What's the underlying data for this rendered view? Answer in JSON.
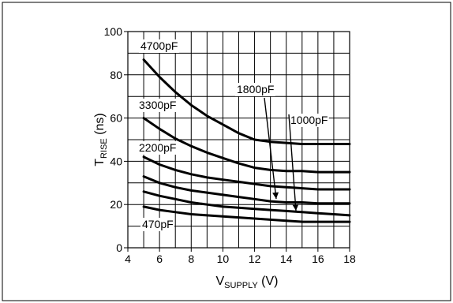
{
  "chart_data": {
    "type": "line",
    "title": "",
    "xlabel": {
      "main": "V",
      "sub": "SUPPLY",
      "unit": " (V)"
    },
    "ylabel": {
      "main": "T",
      "sub": "RISE",
      "unit": " (ns)"
    },
    "xlim": [
      4,
      18
    ],
    "ylim": [
      0,
      100
    ],
    "xticks": [
      4,
      6,
      8,
      10,
      12,
      14,
      16,
      18
    ],
    "yticks": [
      0,
      20,
      40,
      60,
      80,
      100
    ],
    "grid": true,
    "series": [
      {
        "name": "4700pF",
        "x": [
          5,
          6,
          7,
          8,
          9,
          10,
          11,
          12,
          13,
          14,
          15,
          16,
          17,
          18
        ],
        "y": [
          87,
          79,
          72,
          66,
          61,
          57,
          53,
          50,
          49,
          48.5,
          48,
          48,
          48,
          48
        ]
      },
      {
        "name": "3300pF",
        "x": [
          5,
          6,
          7,
          8,
          9,
          10,
          11,
          12,
          13,
          14,
          15,
          16,
          17,
          18
        ],
        "y": [
          60,
          55,
          50.5,
          47,
          44,
          41.5,
          39,
          37,
          36,
          35.5,
          35.5,
          35,
          35,
          35
        ]
      },
      {
        "name": "2200pF",
        "x": [
          5,
          6,
          7,
          8,
          9,
          10,
          11,
          12,
          13,
          14,
          15,
          16,
          17,
          18
        ],
        "y": [
          42,
          38.5,
          36,
          34,
          32.5,
          31.5,
          30.5,
          29.5,
          28.5,
          28,
          27.5,
          27,
          27,
          27
        ]
      },
      {
        "name": "1800pF",
        "x": [
          5,
          6,
          7,
          8,
          9,
          10,
          11,
          12,
          13,
          14,
          15,
          16,
          17,
          18
        ],
        "y": [
          33,
          30,
          28,
          26.5,
          25.5,
          24.5,
          23.5,
          22.5,
          21.5,
          21,
          21,
          20.5,
          20.5,
          20.5
        ]
      },
      {
        "name": "1000pF",
        "x": [
          5,
          6,
          7,
          8,
          9,
          10,
          11,
          12,
          13,
          14,
          15,
          16,
          17,
          18
        ],
        "y": [
          26,
          24,
          22.5,
          21,
          20,
          19,
          18.5,
          18,
          17.5,
          17,
          16.5,
          16,
          15.5,
          15
        ]
      },
      {
        "name": "470pF",
        "x": [
          5,
          6,
          7,
          8,
          9,
          10,
          11,
          12,
          13,
          14,
          15,
          16,
          17,
          18
        ],
        "y": [
          19,
          17.5,
          16.5,
          15.5,
          15,
          14.5,
          14,
          13.5,
          13,
          12.5,
          12,
          12,
          12,
          12
        ]
      }
    ],
    "annotations": [
      "4700pF",
      "3300pF",
      "2200pF",
      "1800pF",
      "1000pF",
      "470pF"
    ]
  }
}
